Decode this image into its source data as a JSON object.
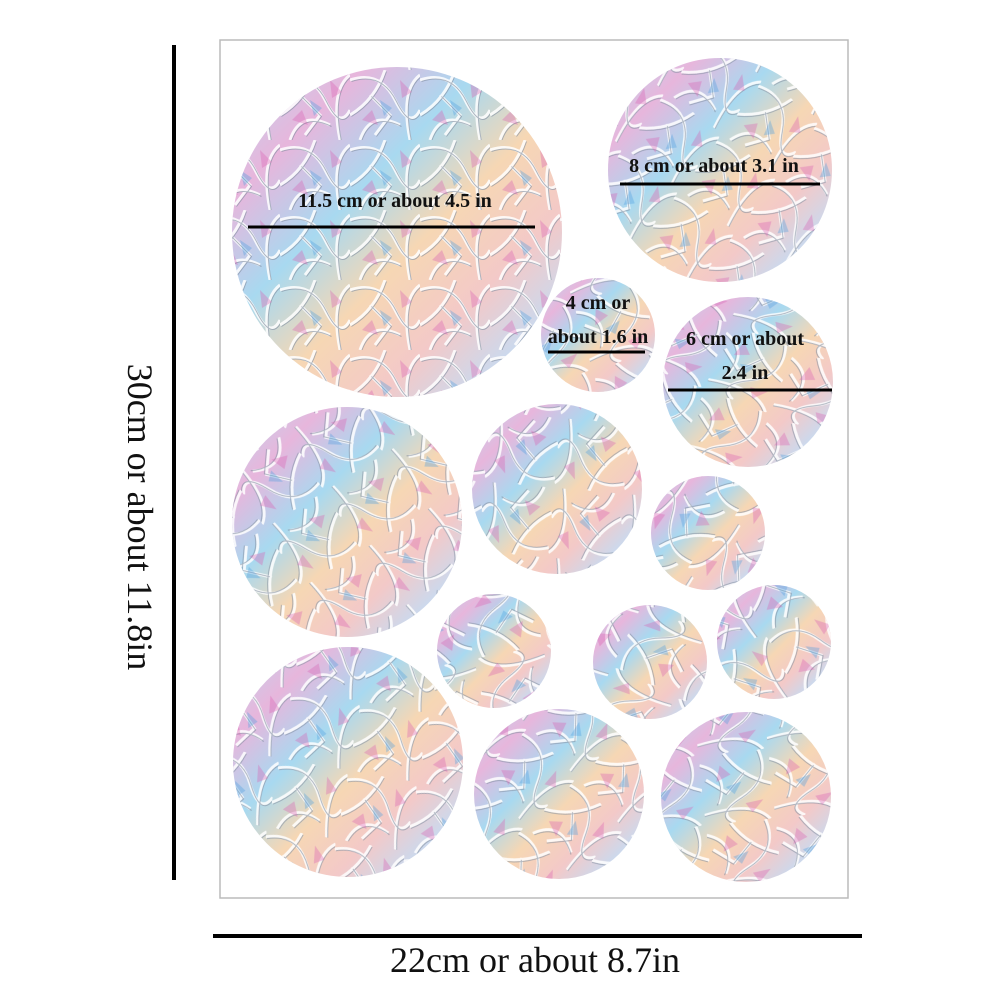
{
  "sheet_width_label": "22cm or about 8.7in",
  "sheet_height_label": "30cm or about 11.8in",
  "size_labels": [
    {
      "lines": [
        "11.5 cm or about 4.5 in"
      ]
    },
    {
      "lines": [
        "8 cm or about 3.1 in"
      ]
    },
    {
      "lines": [
        "4 cm or",
        "about 1.6 in"
      ]
    },
    {
      "lines": [
        "6 cm or about",
        "2.4 in"
      ]
    }
  ]
}
